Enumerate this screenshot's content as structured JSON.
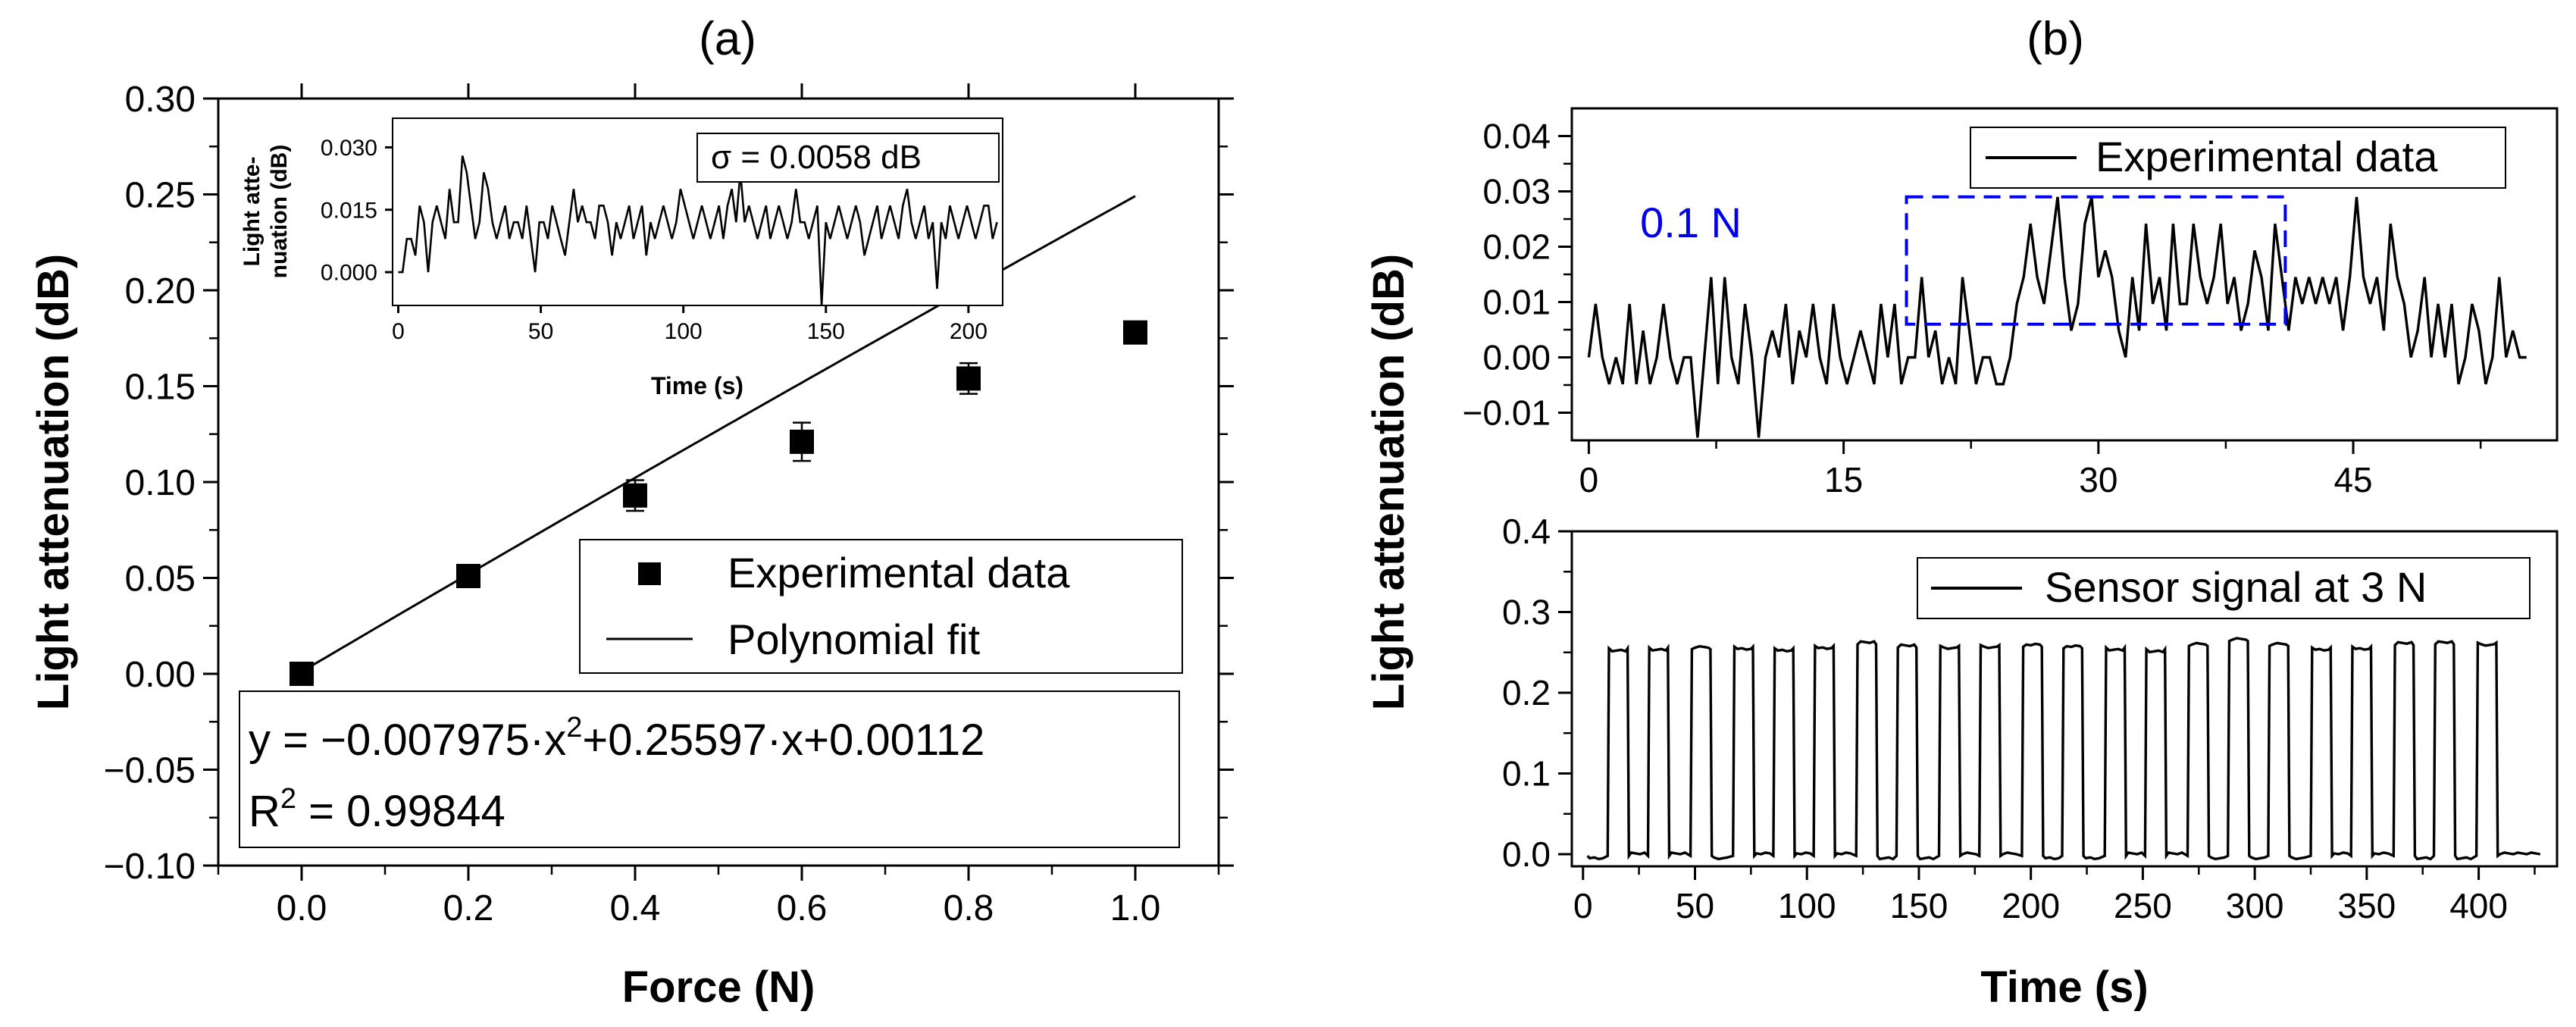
{
  "panels": {
    "a": {
      "label": "(a)"
    },
    "b": {
      "label": "(b)"
    }
  },
  "chart_data": [
    {
      "id": "a-main",
      "type": "scatter",
      "xlabel": "Force (N)",
      "ylabel": "Light attenuation (dB)",
      "xlim": [
        -0.1,
        1.1
      ],
      "ylim": [
        -0.1,
        0.3
      ],
      "xticks": [
        "0.0",
        "0.2",
        "0.4",
        "0.6",
        "0.8",
        "1.0"
      ],
      "yticks": [
        "−0.10",
        "−0.05",
        "0.00",
        "0.05",
        "0.10",
        "0.15",
        "0.20",
        "0.25",
        "0.30"
      ],
      "series": [
        {
          "name": "Experimental data",
          "x": [
            0.0,
            0.2,
            0.4,
            0.6,
            0.8,
            1.0
          ],
          "y": [
            0.0,
            0.051,
            0.093,
            0.121,
            0.154,
            0.178
          ],
          "err": [
            0.0,
            0.004,
            0.008,
            0.01,
            0.008,
            0.003
          ]
        },
        {
          "name": "Polynomial fit",
          "coefficients": [
            -0.007975,
            0.25597,
            0.00112
          ]
        }
      ],
      "annotation": {
        "eq_prefix": "y = −0.007975·x",
        "eq_exp": "2",
        "eq_suffix": "+0.25597·x+0.00112",
        "r2_prefix": "R",
        "r2_exp": "2",
        "r2_suffix": " = 0.99844"
      },
      "legend_position": "center-right"
    },
    {
      "id": "a-inset",
      "type": "line",
      "xlabel": "Time (s)",
      "ylabel_line1": "Light atte-",
      "ylabel_line2": "nuation (dB)",
      "xlim": [
        -2,
        212
      ],
      "ylim": [
        -0.008,
        0.037
      ],
      "xticks": [
        "0",
        "50",
        "100",
        "150",
        "200"
      ],
      "yticks": [
        "0.000",
        "0.015",
        "0.030"
      ],
      "sigma_label": "σ = 0.0058 dB",
      "sample_interval": 1.5,
      "step": 0.004,
      "noise": [
        0,
        0,
        2,
        2,
        1,
        4,
        3,
        0,
        3,
        4,
        3,
        2,
        5,
        3,
        3,
        7,
        6,
        4,
        2,
        3,
        6,
        5,
        3,
        2,
        3,
        4,
        2,
        3,
        3,
        2,
        4,
        2,
        0,
        3,
        3,
        2,
        4,
        3,
        2,
        1,
        3,
        5,
        3,
        4,
        3,
        3,
        2,
        4,
        4,
        3,
        1,
        3,
        2,
        3,
        4,
        2,
        3,
        4,
        1,
        3,
        2,
        3,
        4,
        3,
        2,
        3,
        5,
        4,
        3,
        2,
        3,
        4,
        3,
        2,
        3,
        4,
        2,
        4,
        5,
        3,
        6,
        3,
        4,
        3,
        2,
        3,
        4,
        2,
        3,
        4,
        3,
        2,
        3,
        5,
        3,
        3,
        2,
        3,
        4,
        -2,
        3,
        2,
        3,
        4,
        3,
        2,
        3,
        4,
        3,
        1,
        2,
        3,
        4,
        2,
        3,
        4,
        3,
        2,
        4,
        5,
        3,
        2,
        3,
        4,
        2,
        3,
        -1,
        3,
        2,
        4,
        3,
        2,
        3,
        4,
        3,
        2,
        3,
        4,
        4,
        2,
        3
      ]
    },
    {
      "id": "b-top",
      "type": "line",
      "xlim": [
        -1,
        57
      ],
      "ylim": [
        -0.015,
        0.045
      ],
      "xticks": [
        "0",
        "15",
        "30",
        "45"
      ],
      "yticks": [
        "−0.01",
        "0.00",
        "0.01",
        "0.02",
        "0.03",
        "0.04"
      ],
      "legend": "Experimental data",
      "annotation": "0.1 N",
      "highlight_box": {
        "x": [
          18.7,
          41
        ],
        "y": [
          0.006,
          0.029
        ]
      },
      "sample_interval": 0.4,
      "step": 0.00483,
      "seq": [
        0,
        2,
        0,
        -1,
        0,
        -1,
        2,
        -1,
        1,
        -1,
        0,
        2,
        0,
        -1,
        0,
        0,
        -3,
        0,
        3,
        -1,
        3,
        0,
        -1,
        2,
        0,
        -3,
        0,
        1,
        0,
        2,
        -1,
        1,
        0,
        2,
        0,
        -1,
        2,
        0,
        -1,
        0,
        1,
        0,
        -1,
        2,
        0,
        2,
        -1,
        0,
        0,
        3,
        0,
        1,
        -1,
        0,
        -1,
        3,
        1,
        -1,
        0,
        0,
        -1,
        -1,
        0,
        2,
        3,
        5,
        3,
        2,
        4,
        6,
        3,
        1,
        2,
        5,
        6,
        3,
        4,
        3,
        1,
        0,
        3,
        1,
        5,
        2,
        3,
        1,
        5,
        2,
        2,
        5,
        3,
        2,
        3,
        5,
        2,
        3,
        1,
        2,
        4,
        3,
        1,
        5,
        3,
        1,
        3,
        2,
        3,
        2,
        3,
        2,
        3,
        1,
        3,
        6,
        3,
        2,
        3,
        1,
        5,
        3,
        2,
        0,
        1,
        3,
        0,
        2,
        0,
        2,
        -1,
        0,
        2,
        1,
        -1,
        0,
        3,
        0,
        1,
        0,
        0,
        -3,
        1,
        3,
        0,
        1,
        2,
        0,
        2,
        1,
        -1,
        1,
        0,
        2,
        0,
        1,
        -3,
        1,
        3,
        0,
        2,
        -1,
        1,
        0,
        3,
        1,
        -1,
        0,
        -1,
        2,
        -1
      ]
    },
    {
      "id": "b-bottom",
      "type": "line",
      "xlabel": "Time (s)",
      "xlim": [
        -5,
        435
      ],
      "ylim": [
        -0.015,
        0.4
      ],
      "xticks": [
        "0",
        "50",
        "100",
        "150",
        "200",
        "250",
        "300",
        "350",
        "400"
      ],
      "yticks": [
        "0.0",
        "0.1",
        "0.2",
        "0.3",
        "0.4"
      ],
      "legend": "Sensor signal at 3 N",
      "pulse_starts": [
        11,
        29,
        48,
        67,
        85,
        103,
        122,
        140,
        159,
        177,
        196,
        214,
        233,
        251,
        270,
        288,
        306,
        325,
        343,
        362,
        380,
        399
      ],
      "pulse_width": 9.5,
      "pulse_levels": [
        0.255,
        0.256,
        0.254,
        0.257,
        0.255,
        0.258,
        0.26,
        0.256,
        0.258,
        0.259,
        0.257,
        0.255,
        0.256,
        0.254,
        0.258,
        0.264,
        0.258,
        0.256,
        0.257,
        0.259,
        0.26,
        0.262
      ],
      "baseline": -0.002
    }
  ],
  "shared": {
    "b_ylabel": "Light attenuation (dB)"
  }
}
